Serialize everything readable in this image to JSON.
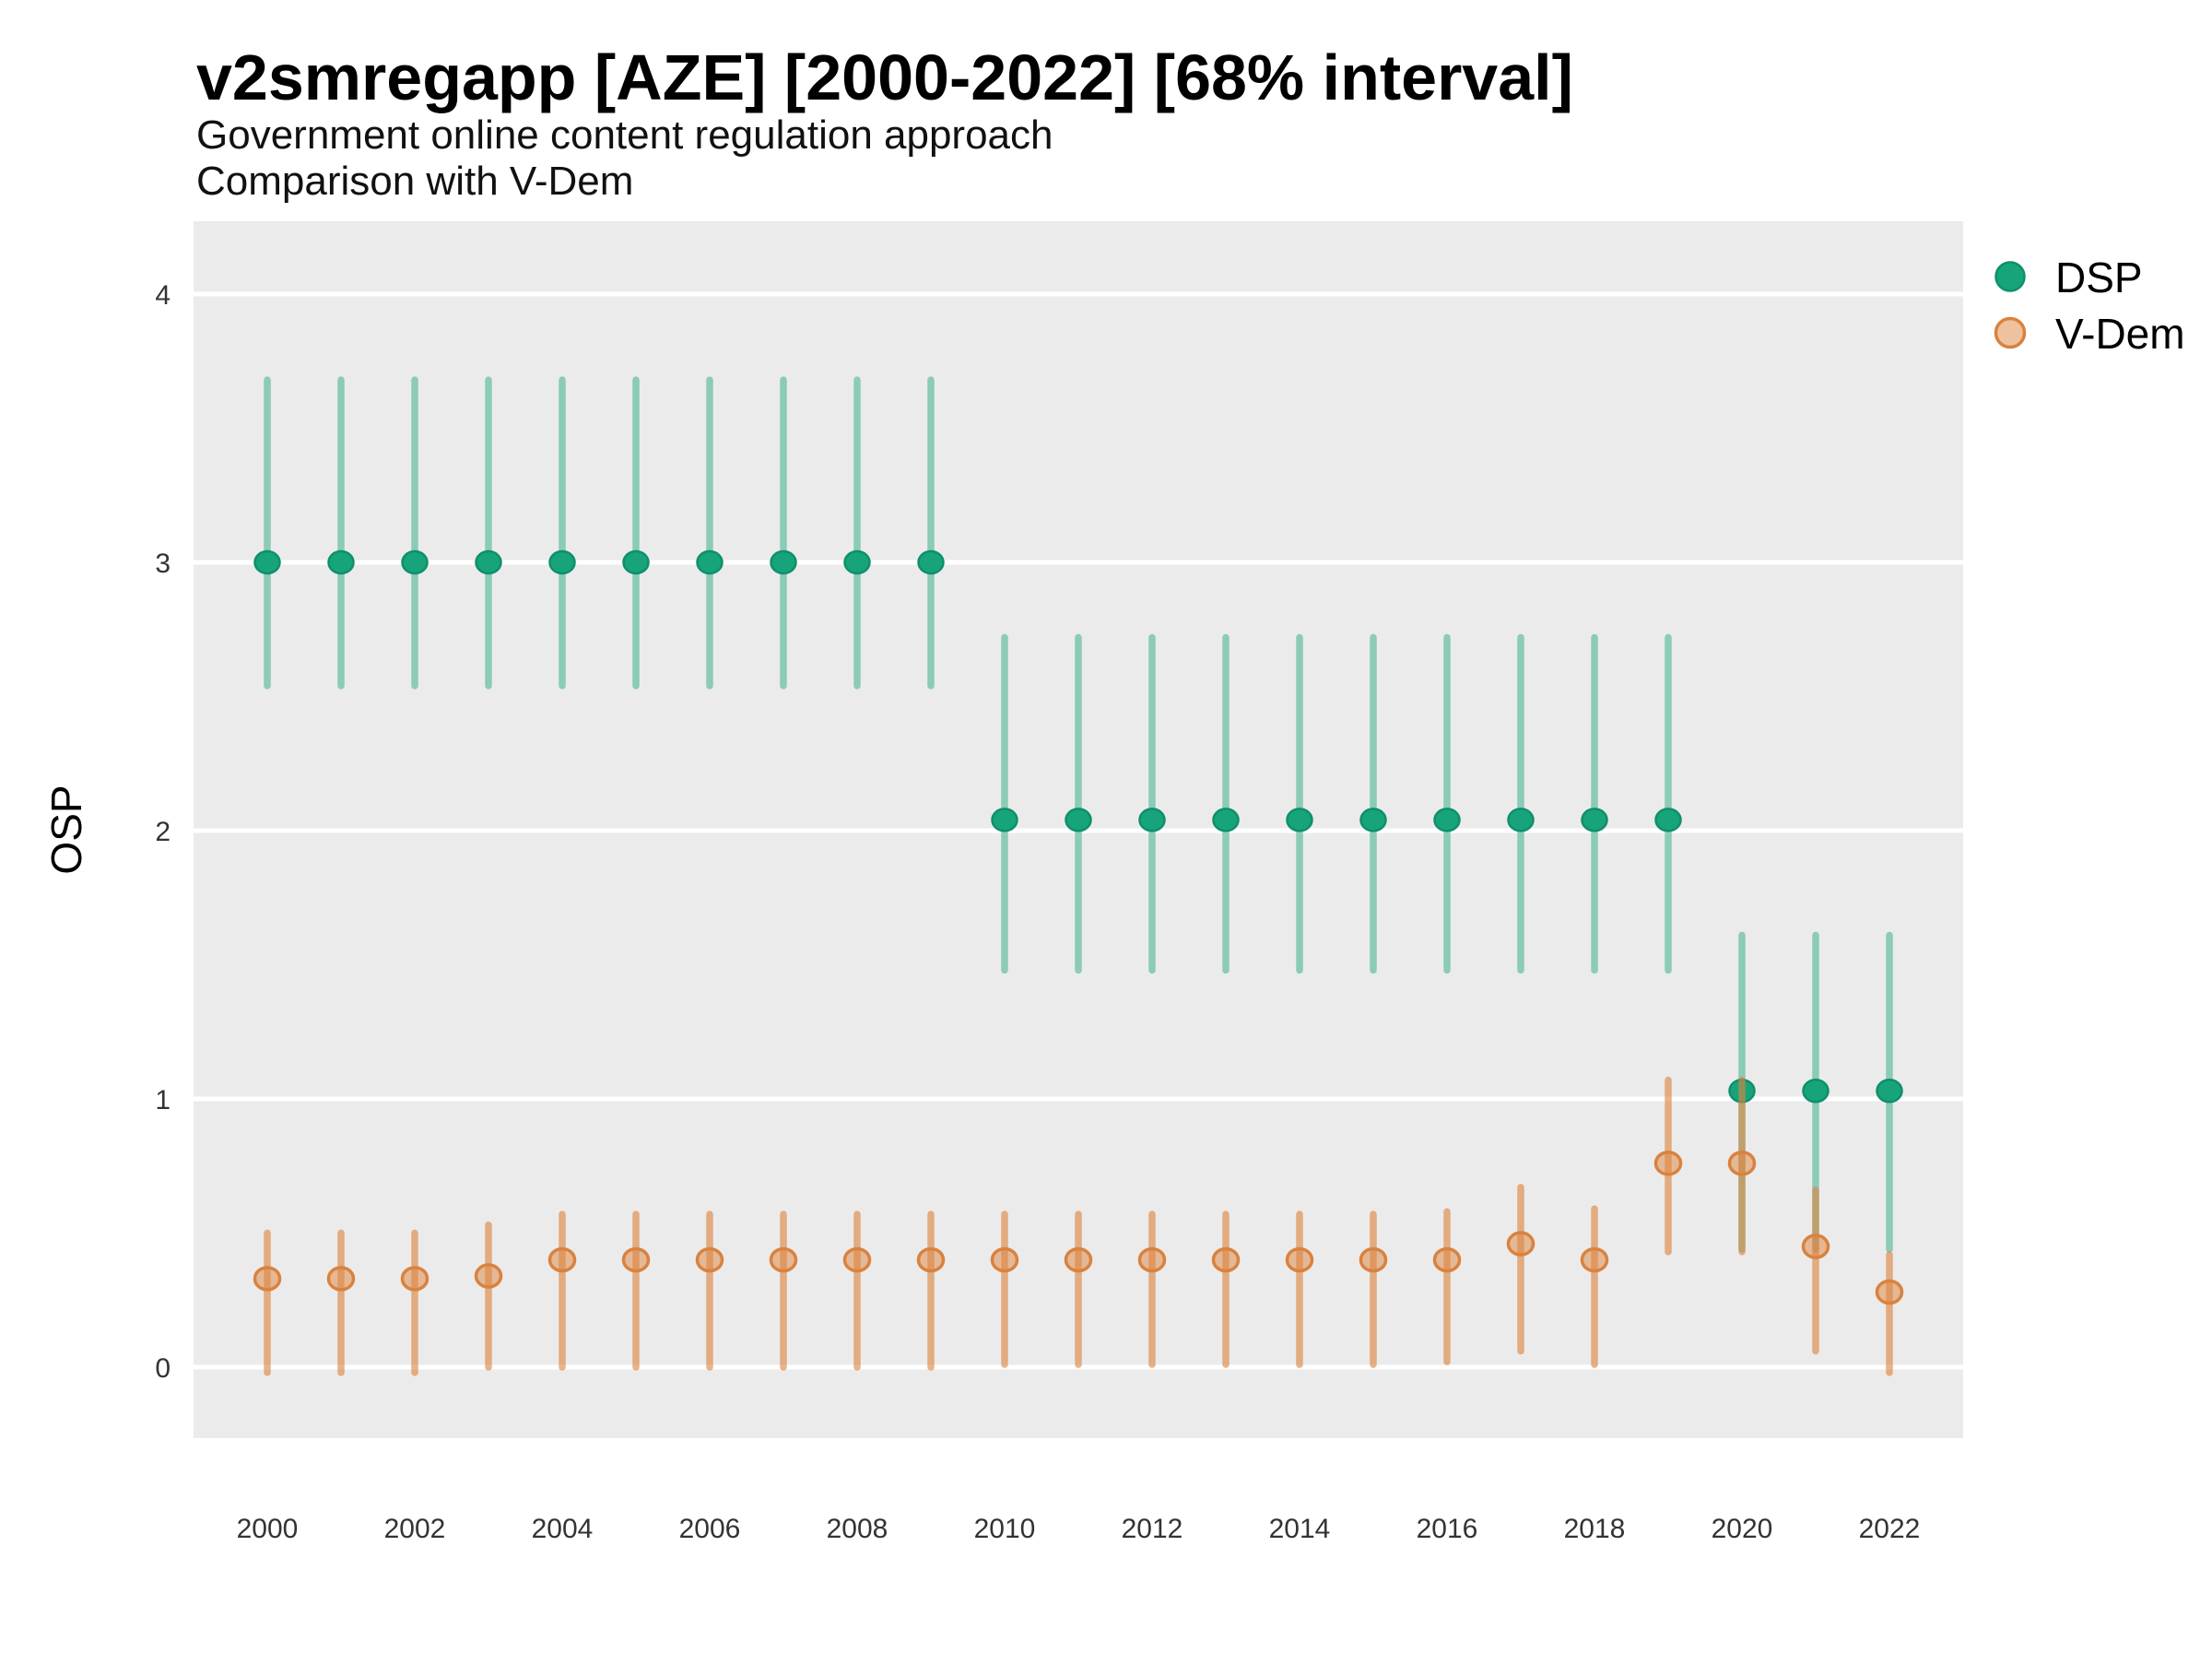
{
  "header": {
    "title": "v2smregapp [AZE] [2000-2022] [68% interval]",
    "subtitle_line1": "Government online content regulation approach",
    "subtitle_line2": "Comparison with V-Dem"
  },
  "axes": {
    "y_label": "OSP",
    "y_ticks": [
      0,
      1,
      2,
      3,
      4
    ],
    "x_tick_labels": [
      "2000",
      "2002",
      "2004",
      "2006",
      "2008",
      "2010",
      "2012",
      "2014",
      "2016",
      "2018",
      "2020",
      "2022"
    ],
    "x_tick_years": [
      2000,
      2002,
      2004,
      2006,
      2008,
      2010,
      2012,
      2014,
      2016,
      2018,
      2020,
      2022
    ]
  },
  "legend": [
    {
      "label": "DSP",
      "point_fill": "#17a47b",
      "point_stroke": "#0f8f6b",
      "point_stroke_width": 2.5,
      "bar_color": "rgba(23,164,123,0.45)"
    },
    {
      "label": "V-Dem",
      "point_fill": "rgba(221,133,63,0.5)",
      "point_stroke": "#d9823f",
      "point_stroke_width": 3.5,
      "bar_color": "rgba(221,133,63,0.62)"
    }
  ],
  "chart_data": {
    "type": "scatter",
    "title": "v2smregapp [AZE] [2000-2022] [68% interval]",
    "subtitle": [
      "Government online content regulation approach",
      "Comparison with V-Dem"
    ],
    "xlabel": "",
    "ylabel": "OSP",
    "interval": "68%",
    "ylim": [
      -0.27,
      4.27
    ],
    "xlim": [
      1999,
      2023
    ],
    "grid": "major-horizontal-white-on-gray",
    "legend_position": "right-top",
    "x": [
      2000,
      2001,
      2002,
      2003,
      2004,
      2005,
      2006,
      2007,
      2008,
      2009,
      2010,
      2011,
      2012,
      2013,
      2014,
      2015,
      2016,
      2017,
      2018,
      2019,
      2020,
      2021,
      2022
    ],
    "series": [
      {
        "name": "DSP",
        "values": [
          3.0,
          3.0,
          3.0,
          3.0,
          3.0,
          3.0,
          3.0,
          3.0,
          3.0,
          3.0,
          2.04,
          2.04,
          2.04,
          2.04,
          2.04,
          2.04,
          2.04,
          2.04,
          2.04,
          2.04,
          1.03,
          1.03,
          1.03
        ],
        "lower": [
          2.54,
          2.54,
          2.54,
          2.54,
          2.54,
          2.54,
          2.54,
          2.54,
          2.54,
          2.54,
          1.48,
          1.48,
          1.48,
          1.48,
          1.48,
          1.48,
          1.48,
          1.48,
          1.48,
          1.48,
          0.44,
          0.44,
          0.44
        ],
        "upper": [
          3.68,
          3.68,
          3.68,
          3.68,
          3.68,
          3.68,
          3.68,
          3.68,
          3.68,
          3.68,
          2.72,
          2.72,
          2.72,
          2.72,
          2.72,
          2.72,
          2.72,
          2.72,
          2.72,
          2.72,
          1.61,
          1.61,
          1.61
        ]
      },
      {
        "name": "V-Dem",
        "values": [
          0.33,
          0.33,
          0.33,
          0.34,
          0.4,
          0.4,
          0.4,
          0.4,
          0.4,
          0.4,
          0.4,
          0.4,
          0.4,
          0.4,
          0.4,
          0.4,
          0.4,
          0.46,
          0.4,
          0.76,
          0.76,
          0.45,
          0.28
        ],
        "lower": [
          -0.02,
          -0.02,
          -0.02,
          0.0,
          0.0,
          0.0,
          0.0,
          0.0,
          0.0,
          0.0,
          0.01,
          0.01,
          0.01,
          0.01,
          0.01,
          0.01,
          0.02,
          0.06,
          0.01,
          0.43,
          0.43,
          0.06,
          -0.02
        ],
        "upper": [
          0.5,
          0.5,
          0.5,
          0.53,
          0.57,
          0.57,
          0.57,
          0.57,
          0.57,
          0.57,
          0.57,
          0.57,
          0.57,
          0.57,
          0.57,
          0.57,
          0.58,
          0.67,
          0.59,
          1.07,
          1.07,
          0.66,
          0.42
        ]
      }
    ]
  }
}
